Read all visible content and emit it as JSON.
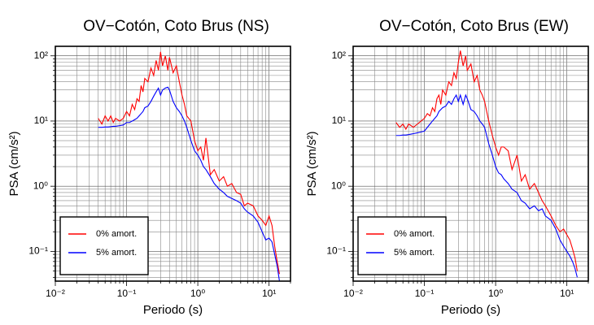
{
  "chart_data": [
    {
      "type": "line",
      "title": "OV−Cotón, Coto Brus (NS)",
      "x_label": "Periodo (s)",
      "y_label": "PSA (cm/s²)",
      "log_x": true,
      "log_y": true,
      "grid": true,
      "legend": "lower left",
      "xlim": [
        0.01,
        20
      ],
      "ylim": [
        0.035,
        140
      ],
      "xticks": [
        {
          "value": 0.01,
          "label": "10⁻²"
        },
        {
          "value": 0.1,
          "label": "10⁻¹"
        },
        {
          "value": 1,
          "label": "10⁰"
        },
        {
          "value": 10,
          "label": "10¹"
        }
      ],
      "yticks": [
        {
          "value": 0.1,
          "label": "10⁻¹"
        },
        {
          "value": 1,
          "label": "10⁰"
        },
        {
          "value": 10,
          "label": "10¹"
        },
        {
          "value": 100,
          "label": "10²"
        }
      ],
      "x": [
        0.04,
        0.045,
        0.05,
        0.055,
        0.06,
        0.065,
        0.07,
        0.08,
        0.09,
        0.1,
        0.11,
        0.12,
        0.13,
        0.14,
        0.15,
        0.16,
        0.17,
        0.18,
        0.2,
        0.22,
        0.24,
        0.26,
        0.28,
        0.3,
        0.32,
        0.35,
        0.38,
        0.4,
        0.45,
        0.5,
        0.55,
        0.6,
        0.65,
        0.7,
        0.8,
        0.9,
        1.0,
        1.1,
        1.2,
        1.3,
        1.5,
        1.7,
        2.0,
        2.3,
        2.6,
        3.0,
        3.5,
        4.0,
        4.5,
        5.0,
        6.0,
        7.0,
        8.0,
        9.0,
        10,
        11,
        12,
        13,
        14
      ],
      "series": [
        {
          "name": "0% amort.",
          "color": "#ff0000",
          "values": [
            11,
            9,
            12,
            10,
            12,
            9.5,
            11,
            10,
            11,
            14,
            12,
            18,
            15,
            22,
            20,
            35,
            28,
            45,
            40,
            65,
            50,
            85,
            60,
            115,
            70,
            100,
            60,
            95,
            55,
            70,
            40,
            25,
            18,
            12,
            10,
            5,
            3.5,
            4,
            2.5,
            5.5,
            1.5,
            1.8,
            1.2,
            1.4,
            1.0,
            1.1,
            0.8,
            0.75,
            0.5,
            0.55,
            0.5,
            0.35,
            0.3,
            0.25,
            0.35,
            0.25,
            0.12,
            0.07,
            0.045
          ]
        },
        {
          "name": "5% amort.",
          "color": "#0000ff",
          "values": [
            8,
            8,
            8.1,
            8.1,
            8.2,
            8.3,
            8.3,
            8.5,
            8.7,
            9.5,
            9.5,
            10,
            10.5,
            11,
            12,
            13,
            14,
            16,
            17,
            20,
            24,
            28,
            32,
            25,
            30,
            32,
            33,
            30,
            20,
            16,
            14,
            12,
            10,
            8,
            5,
            3.5,
            3,
            2.5,
            2,
            1.8,
            1.4,
            1.1,
            0.9,
            0.8,
            0.7,
            0.65,
            0.6,
            0.55,
            0.45,
            0.4,
            0.35,
            0.28,
            0.2,
            0.15,
            0.16,
            0.14,
            0.09,
            0.06,
            0.035
          ]
        }
      ]
    },
    {
      "type": "line",
      "title": "OV−Cotón, Coto Brus (EW)",
      "x_label": "Periodo (s)",
      "y_label": "PSA (cm/s²)",
      "log_x": true,
      "log_y": true,
      "grid": true,
      "legend": "lower left",
      "xlim": [
        0.01,
        20
      ],
      "ylim": [
        0.035,
        140
      ],
      "xticks": [
        {
          "value": 0.01,
          "label": "10⁻²"
        },
        {
          "value": 0.1,
          "label": "10⁻¹"
        },
        {
          "value": 1,
          "label": "10⁰"
        },
        {
          "value": 10,
          "label": "10¹"
        }
      ],
      "yticks": [
        {
          "value": 0.1,
          "label": "10⁻¹"
        },
        {
          "value": 1,
          "label": "10⁰"
        },
        {
          "value": 10,
          "label": "10¹"
        },
        {
          "value": 100,
          "label": "10²"
        }
      ],
      "x": [
        0.04,
        0.045,
        0.05,
        0.055,
        0.06,
        0.065,
        0.07,
        0.08,
        0.09,
        0.1,
        0.11,
        0.12,
        0.13,
        0.14,
        0.15,
        0.16,
        0.17,
        0.18,
        0.2,
        0.22,
        0.24,
        0.26,
        0.28,
        0.3,
        0.32,
        0.35,
        0.38,
        0.4,
        0.45,
        0.5,
        0.55,
        0.6,
        0.65,
        0.7,
        0.8,
        0.9,
        1.0,
        1.1,
        1.2,
        1.3,
        1.5,
        1.7,
        2.0,
        2.3,
        2.6,
        3.0,
        3.5,
        4.0,
        4.5,
        5.0,
        6.0,
        7.0,
        8.0,
        9.0,
        10,
        11,
        12,
        13,
        14
      ],
      "series": [
        {
          "name": "0% amort.",
          "color": "#ff0000",
          "values": [
            9.5,
            8,
            9,
            7.5,
            9,
            8.5,
            8,
            9,
            10,
            11,
            13,
            12,
            16,
            14,
            22,
            25,
            18,
            30,
            25,
            40,
            35,
            55,
            45,
            80,
            120,
            70,
            100,
            60,
            75,
            40,
            50,
            30,
            25,
            20,
            10,
            6,
            4,
            3,
            4,
            4,
            3.5,
            1.8,
            3,
            1.2,
            1.5,
            0.9,
            1.1,
            0.8,
            0.6,
            0.5,
            0.35,
            0.25,
            0.2,
            0.22,
            0.18,
            0.15,
            0.11,
            0.08,
            0.05
          ]
        },
        {
          "name": "5% amort.",
          "color": "#0000ff",
          "values": [
            6,
            6,
            6.1,
            6.1,
            6.2,
            6.3,
            6.4,
            6.6,
            6.8,
            7,
            8,
            9,
            10,
            11,
            12,
            14,
            15,
            16,
            17,
            20,
            18,
            22,
            25,
            20,
            25,
            18,
            25,
            22,
            15,
            14,
            12,
            10,
            9,
            8,
            4.5,
            3,
            2,
            1.6,
            1.5,
            1.3,
            1.1,
            0.9,
            0.8,
            0.6,
            0.55,
            0.45,
            0.5,
            0.42,
            0.45,
            0.35,
            0.3,
            0.22,
            0.15,
            0.12,
            0.1,
            0.085,
            0.07,
            0.055,
            0.04
          ]
        }
      ]
    }
  ]
}
